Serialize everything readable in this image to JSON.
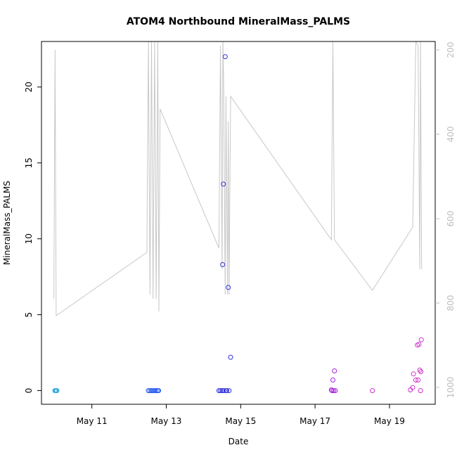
{
  "chart_data": {
    "type": "scatter",
    "title": "ATOM4 Northbound MineralMass_PALMS",
    "xlabel": "Date",
    "ylabel": "MineralMass_PALMS",
    "xlim": [
      "2018-05-09T15:30",
      "2018-05-20T05:30"
    ],
    "ylim": [
      -0.9,
      23.0
    ],
    "x_ticks": [
      {
        "x": "2018-05-11T00:00",
        "label": "May 11"
      },
      {
        "x": "2018-05-13T00:00",
        "label": "May 13"
      },
      {
        "x": "2018-05-15T00:00",
        "label": "May 15"
      },
      {
        "x": "2018-05-17T00:00",
        "label": "May 17"
      },
      {
        "x": "2018-05-19T00:00",
        "label": "May 19"
      }
    ],
    "y_ticks": [
      0,
      5,
      10,
      15,
      20
    ],
    "right_axis": {
      "color": "#bdbdbd",
      "reversed": true,
      "lim": [
        1040,
        180
      ],
      "ticks": [
        200,
        400,
        600,
        800,
        1000
      ]
    },
    "grid": false,
    "legend": "none",
    "series": [
      {
        "color": "#33aadd",
        "points": [
          [
            "2018-05-10T00:10",
            0.0
          ],
          [
            "2018-05-10T00:35",
            0.0
          ],
          [
            "2018-05-10T01:00",
            0.0
          ],
          [
            "2018-05-10T01:25",
            0.0
          ]
        ]
      },
      {
        "color": "#2255ee",
        "points": [
          [
            "2018-05-12T12:30",
            0.0
          ],
          [
            "2018-05-12T13:30",
            0.0
          ],
          [
            "2018-05-12T14:30",
            0.0
          ],
          [
            "2018-05-12T15:30",
            0.0
          ],
          [
            "2018-05-12T16:30",
            0.0
          ],
          [
            "2018-05-12T17:30",
            0.0
          ],
          [
            "2018-05-12T18:30",
            0.0
          ],
          [
            "2018-05-12T19:00",
            0.0
          ]
        ]
      },
      {
        "color": "#3333dd",
        "points": [
          [
            "2018-05-14T10:00",
            0.0
          ],
          [
            "2018-05-14T11:00",
            0.0
          ],
          [
            "2018-05-14T12:00",
            0.0
          ],
          [
            "2018-05-14T12:20",
            8.3
          ],
          [
            "2018-05-14T12:50",
            13.6
          ],
          [
            "2018-05-14T13:00",
            0.0
          ],
          [
            "2018-05-14T14:00",
            22.0
          ],
          [
            "2018-05-14T14:30",
            0.0
          ],
          [
            "2018-05-14T15:00",
            0.0
          ],
          [
            "2018-05-14T16:00",
            6.8
          ],
          [
            "2018-05-14T16:30",
            0.0
          ],
          [
            "2018-05-14T17:30",
            2.2
          ]
        ]
      },
      {
        "color": "#aa22dd",
        "points": [
          [
            "2018-05-17T10:30",
            0.05
          ],
          [
            "2018-05-17T11:00",
            0.0
          ],
          [
            "2018-05-17T11:30",
            0.7
          ],
          [
            "2018-05-17T12:00",
            0.0
          ],
          [
            "2018-05-17T12:30",
            1.3
          ],
          [
            "2018-05-17T13:00",
            0.0
          ]
        ]
      },
      {
        "color": "#cc33cc",
        "points": [
          [
            "2018-05-18T13:00",
            0.0
          ],
          [
            "2018-05-19T13:30",
            0.05
          ],
          [
            "2018-05-19T15:00",
            0.2
          ],
          [
            "2018-05-19T15:30",
            1.1
          ],
          [
            "2018-05-19T17:00",
            0.7
          ],
          [
            "2018-05-19T18:00",
            3.0
          ],
          [
            "2018-05-19T18:30",
            0.7
          ],
          [
            "2018-05-19T19:00",
            3.05
          ],
          [
            "2018-05-19T19:30",
            1.35
          ],
          [
            "2018-05-19T20:00",
            0.0
          ],
          [
            "2018-05-19T20:15",
            1.25
          ],
          [
            "2018-05-19T20:30",
            3.35
          ]
        ]
      }
    ],
    "secondary_line": {
      "color": "#c8c8c8",
      "points": [
        [
          "2018-05-09T23:30",
          790
        ],
        [
          "2018-05-10T00:15",
          200
        ],
        [
          "2018-05-10T01:00",
          830
        ],
        [
          "2018-05-12T11:30",
          680
        ],
        [
          "2018-05-12T12:30",
          180
        ],
        [
          "2018-05-12T13:30",
          780
        ],
        [
          "2018-05-12T14:30",
          180
        ],
        [
          "2018-05-12T15:30",
          790
        ],
        [
          "2018-05-12T16:30",
          180
        ],
        [
          "2018-05-12T17:30",
          790
        ],
        [
          "2018-05-12T18:30",
          180
        ],
        [
          "2018-05-12T19:15",
          820
        ],
        [
          "2018-05-12T20:00",
          340
        ],
        [
          "2018-05-14T10:00",
          670
        ],
        [
          "2018-05-14T11:00",
          190
        ],
        [
          "2018-05-14T12:00",
          720
        ],
        [
          "2018-05-14T12:30",
          170
        ],
        [
          "2018-05-14T13:00",
          280
        ],
        [
          "2018-05-14T14:00",
          780
        ],
        [
          "2018-05-14T14:30",
          310
        ],
        [
          "2018-05-14T15:30",
          780
        ],
        [
          "2018-05-14T16:00",
          370
        ],
        [
          "2018-05-14T16:30",
          780
        ],
        [
          "2018-05-14T17:30",
          310
        ],
        [
          "2018-05-17T10:30",
          650
        ],
        [
          "2018-05-17T11:30",
          180
        ],
        [
          "2018-05-17T12:30",
          650
        ],
        [
          "2018-05-18T13:00",
          770
        ],
        [
          "2018-05-19T15:00",
          620
        ],
        [
          "2018-05-19T17:00",
          180
        ],
        [
          "2018-05-19T18:30",
          190
        ],
        [
          "2018-05-19T19:30",
          720
        ],
        [
          "2018-05-19T20:00",
          180
        ],
        [
          "2018-05-19T20:45",
          720
        ]
      ]
    }
  }
}
